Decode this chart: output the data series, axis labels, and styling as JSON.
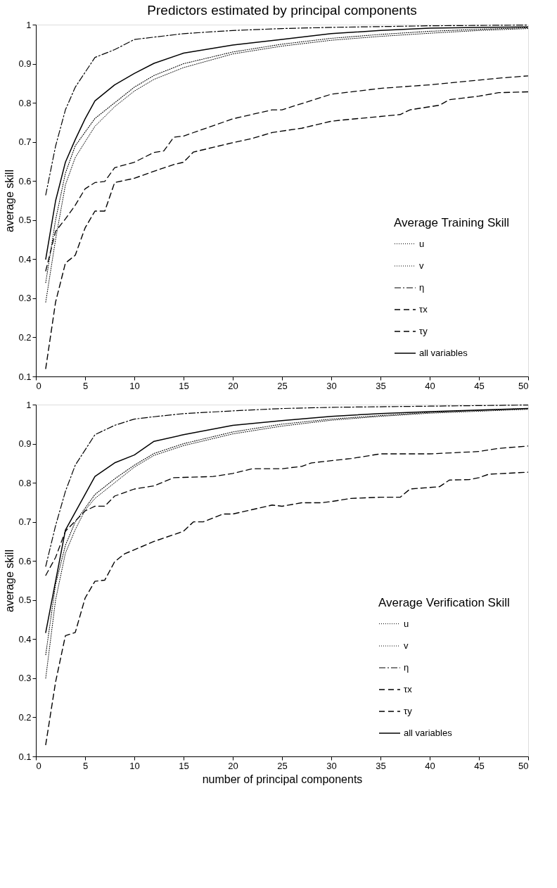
{
  "chart_data": [
    {
      "type": "line",
      "title": "Predictors estimated by principal components",
      "ylabel": "average skill",
      "legend_title": "Average Training Skill",
      "legend": "bottom right",
      "grid": false,
      "marker": "none",
      "xlim": [
        0,
        50
      ],
      "xticks": [
        0,
        5,
        10,
        15,
        20,
        25,
        30,
        35,
        40,
        45,
        50
      ],
      "ylim": [
        0.1,
        1
      ],
      "yticks": [
        0.1,
        0.2,
        0.3,
        0.4,
        0.5,
        0.6,
        0.7,
        0.8,
        0.9,
        1
      ],
      "series": [
        {
          "name": "u",
          "color": "#000000",
          "line_style": "dotted",
          "x": [
            1,
            2,
            3,
            4,
            6,
            8,
            10,
            12,
            15,
            20,
            25,
            30,
            35,
            40,
            45,
            50
          ],
          "values": [
            0.29,
            0.45,
            0.59,
            0.66,
            0.74,
            0.79,
            0.83,
            0.86,
            0.89,
            0.925,
            0.945,
            0.96,
            0.97,
            0.978,
            0.985,
            0.99
          ]
        },
        {
          "name": "v",
          "color": "#000000",
          "line_style": "dotted",
          "x": [
            1,
            2,
            3,
            4,
            6,
            8,
            10,
            12,
            15,
            20,
            25,
            30,
            35,
            40,
            45,
            50
          ],
          "values": [
            0.34,
            0.5,
            0.62,
            0.69,
            0.76,
            0.8,
            0.84,
            0.87,
            0.9,
            0.93,
            0.95,
            0.965,
            0.975,
            0.983,
            0.988,
            0.992
          ]
        },
        {
          "name": "η",
          "color": "#000000",
          "line_style": "dashdot",
          "x": [
            1,
            2,
            3,
            4,
            6,
            8,
            10,
            12,
            15,
            20,
            25,
            30,
            35,
            40,
            45,
            50
          ],
          "values": [
            0.564,
            0.689,
            0.782,
            0.84,
            0.916,
            0.936,
            0.962,
            0.968,
            0.977,
            0.985,
            0.99,
            0.993,
            0.995,
            0.997,
            0.998,
            0.999
          ]
        },
        {
          "name": "τx",
          "color": "#000000",
          "line_style": "dashed",
          "x": [
            1,
            2,
            3,
            4,
            5,
            6,
            7,
            8,
            10,
            12,
            13,
            14,
            15,
            20,
            24,
            25,
            30,
            35,
            40,
            45,
            47,
            50
          ],
          "values": [
            0.37,
            0.471,
            0.503,
            0.538,
            0.58,
            0.596,
            0.599,
            0.634,
            0.648,
            0.673,
            0.677,
            0.712,
            0.715,
            0.759,
            0.782,
            0.782,
            0.822,
            0.837,
            0.846,
            0.858,
            0.863,
            0.869
          ]
        },
        {
          "name": "τy",
          "color": "#000000",
          "line_style": "dashed",
          "x": [
            1,
            2,
            3,
            4,
            5,
            6,
            7,
            8,
            10,
            12,
            14,
            15,
            16,
            18,
            20,
            22,
            24,
            27,
            29,
            30,
            32,
            35,
            37,
            38,
            40,
            41,
            42,
            45,
            47,
            50
          ],
          "values": [
            0.12,
            0.29,
            0.39,
            0.41,
            0.48,
            0.523,
            0.523,
            0.596,
            0.607,
            0.625,
            0.642,
            0.648,
            0.674,
            0.686,
            0.698,
            0.709,
            0.724,
            0.735,
            0.747,
            0.753,
            0.758,
            0.765,
            0.77,
            0.782,
            0.79,
            0.794,
            0.808,
            0.817,
            0.826,
            0.828
          ]
        },
        {
          "name": "all variables",
          "color": "#000000",
          "line_style": "solid",
          "x": [
            1,
            2,
            3,
            4,
            5,
            6,
            8,
            10,
            12,
            15,
            20,
            25,
            30,
            35,
            40,
            45,
            50
          ],
          "values": [
            0.4,
            0.549,
            0.648,
            0.706,
            0.759,
            0.805,
            0.846,
            0.875,
            0.901,
            0.927,
            0.948,
            0.962,
            0.977,
            0.985,
            0.991,
            0.993,
            0.994
          ]
        }
      ]
    },
    {
      "type": "line",
      "ylabel": "average skill",
      "xlabel": "number of principal components",
      "legend_title": "Average Verification Skill",
      "legend": "bottom right",
      "grid": false,
      "marker": "none",
      "xlim": [
        0,
        50
      ],
      "xticks": [
        0,
        5,
        10,
        15,
        20,
        25,
        30,
        35,
        40,
        45,
        50
      ],
      "ylim": [
        0.1,
        1
      ],
      "yticks": [
        0.1,
        0.2,
        0.3,
        0.4,
        0.5,
        0.6,
        0.7,
        0.8,
        0.9,
        1
      ],
      "series": [
        {
          "name": "u",
          "color": "#000000",
          "line_style": "dotted",
          "x": [
            1,
            2,
            3,
            4,
            5,
            6,
            8,
            10,
            12,
            15,
            20,
            25,
            30,
            35,
            40,
            45,
            50
          ],
          "values": [
            0.3,
            0.5,
            0.62,
            0.68,
            0.73,
            0.76,
            0.8,
            0.84,
            0.87,
            0.895,
            0.925,
            0.945,
            0.96,
            0.97,
            0.978,
            0.983,
            0.988
          ]
        },
        {
          "name": "v",
          "color": "#000000",
          "line_style": "dotted",
          "x": [
            1,
            2,
            3,
            4,
            6,
            8,
            10,
            12,
            15,
            20,
            25,
            30,
            35,
            40,
            45,
            50
          ],
          "values": [
            0.36,
            0.54,
            0.64,
            0.7,
            0.77,
            0.81,
            0.845,
            0.875,
            0.9,
            0.93,
            0.95,
            0.963,
            0.972,
            0.98,
            0.985,
            0.99
          ]
        },
        {
          "name": "η",
          "color": "#000000",
          "line_style": "dashdot",
          "x": [
            1,
            2,
            3,
            4,
            6,
            8,
            10,
            12,
            15,
            20,
            25,
            30,
            40,
            50
          ],
          "values": [
            0.586,
            0.69,
            0.778,
            0.845,
            0.923,
            0.947,
            0.963,
            0.969,
            0.977,
            0.984,
            0.99,
            0.993,
            0.996,
            0.999
          ]
        },
        {
          "name": "τx",
          "color": "#000000",
          "line_style": "dashed",
          "x": [
            1,
            2,
            3,
            4,
            5,
            6,
            7,
            8,
            10,
            12,
            14,
            18,
            20,
            22,
            25,
            27,
            28,
            32,
            35,
            40,
            45,
            47,
            50
          ],
          "values": [
            0.563,
            0.609,
            0.676,
            0.702,
            0.728,
            0.74,
            0.74,
            0.766,
            0.784,
            0.792,
            0.813,
            0.816,
            0.824,
            0.836,
            0.836,
            0.842,
            0.851,
            0.862,
            0.874,
            0.874,
            0.88,
            0.888,
            0.894
          ]
        },
        {
          "name": "τy",
          "color": "#000000",
          "line_style": "dashed",
          "x": [
            1,
            2,
            3,
            4,
            5,
            6,
            7,
            8,
            9,
            12,
            15,
            16,
            17,
            19,
            20,
            24,
            25,
            27,
            29,
            30,
            32,
            35,
            37,
            38,
            41,
            42,
            44,
            45,
            46,
            50
          ],
          "values": [
            0.13,
            0.29,
            0.409,
            0.417,
            0.505,
            0.548,
            0.551,
            0.598,
            0.618,
            0.65,
            0.676,
            0.7,
            0.7,
            0.72,
            0.72,
            0.743,
            0.74,
            0.749,
            0.749,
            0.752,
            0.76,
            0.763,
            0.763,
            0.784,
            0.79,
            0.807,
            0.808,
            0.813,
            0.822,
            0.827
          ]
        },
        {
          "name": "all variables",
          "color": "#000000",
          "line_style": "solid",
          "x": [
            1,
            3,
            6,
            8,
            10,
            12,
            15,
            20,
            25,
            30,
            35,
            40,
            45,
            50
          ],
          "values": [
            0.417,
            0.679,
            0.816,
            0.851,
            0.871,
            0.906,
            0.923,
            0.947,
            0.959,
            0.97,
            0.977,
            0.982,
            0.986,
            0.99
          ]
        }
      ]
    }
  ]
}
